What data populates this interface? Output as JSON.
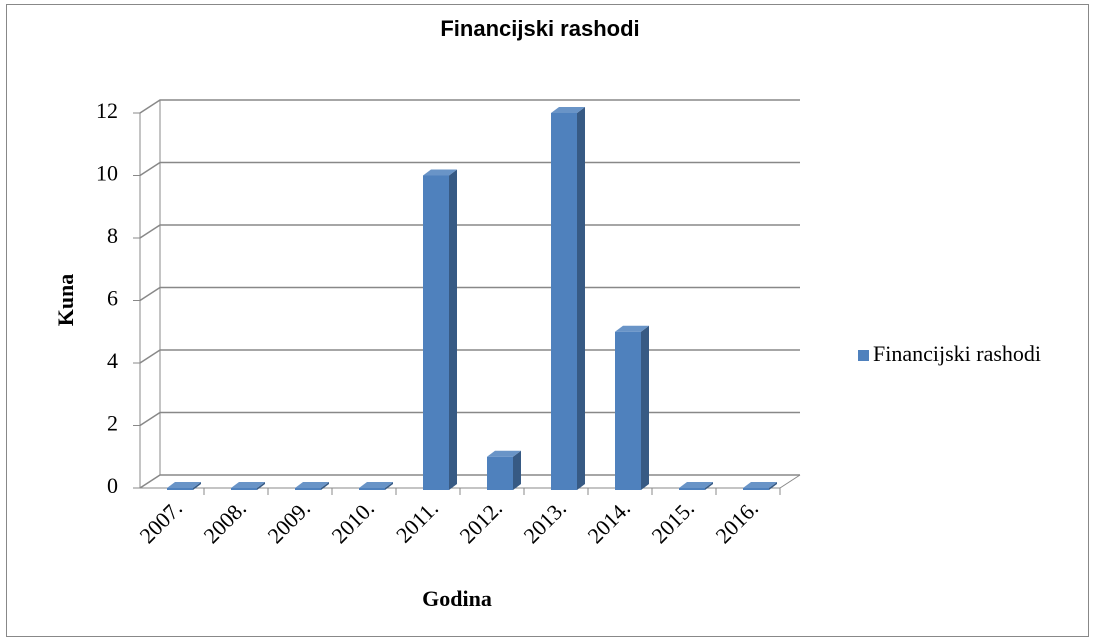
{
  "chart_data": {
    "type": "bar3d",
    "title": "Financijski rashodi",
    "x_label": "Godina",
    "y_label": "Kuna",
    "categories": [
      "2007.",
      "2008.",
      "2009.",
      "2010.",
      "2011.",
      "2012.",
      "2013.",
      "2014.",
      "2015.",
      "2016."
    ],
    "series": [
      {
        "name": "Financijski rashodi",
        "color": "#4f81bd",
        "values": [
          0,
          0,
          0,
          0,
          10,
          1,
          12,
          5,
          0,
          0
        ]
      }
    ],
    "ylim": [
      0,
      12
    ],
    "yticks": [
      0,
      2,
      4,
      6,
      8,
      10,
      12
    ],
    "grid": true,
    "legend": "right"
  }
}
